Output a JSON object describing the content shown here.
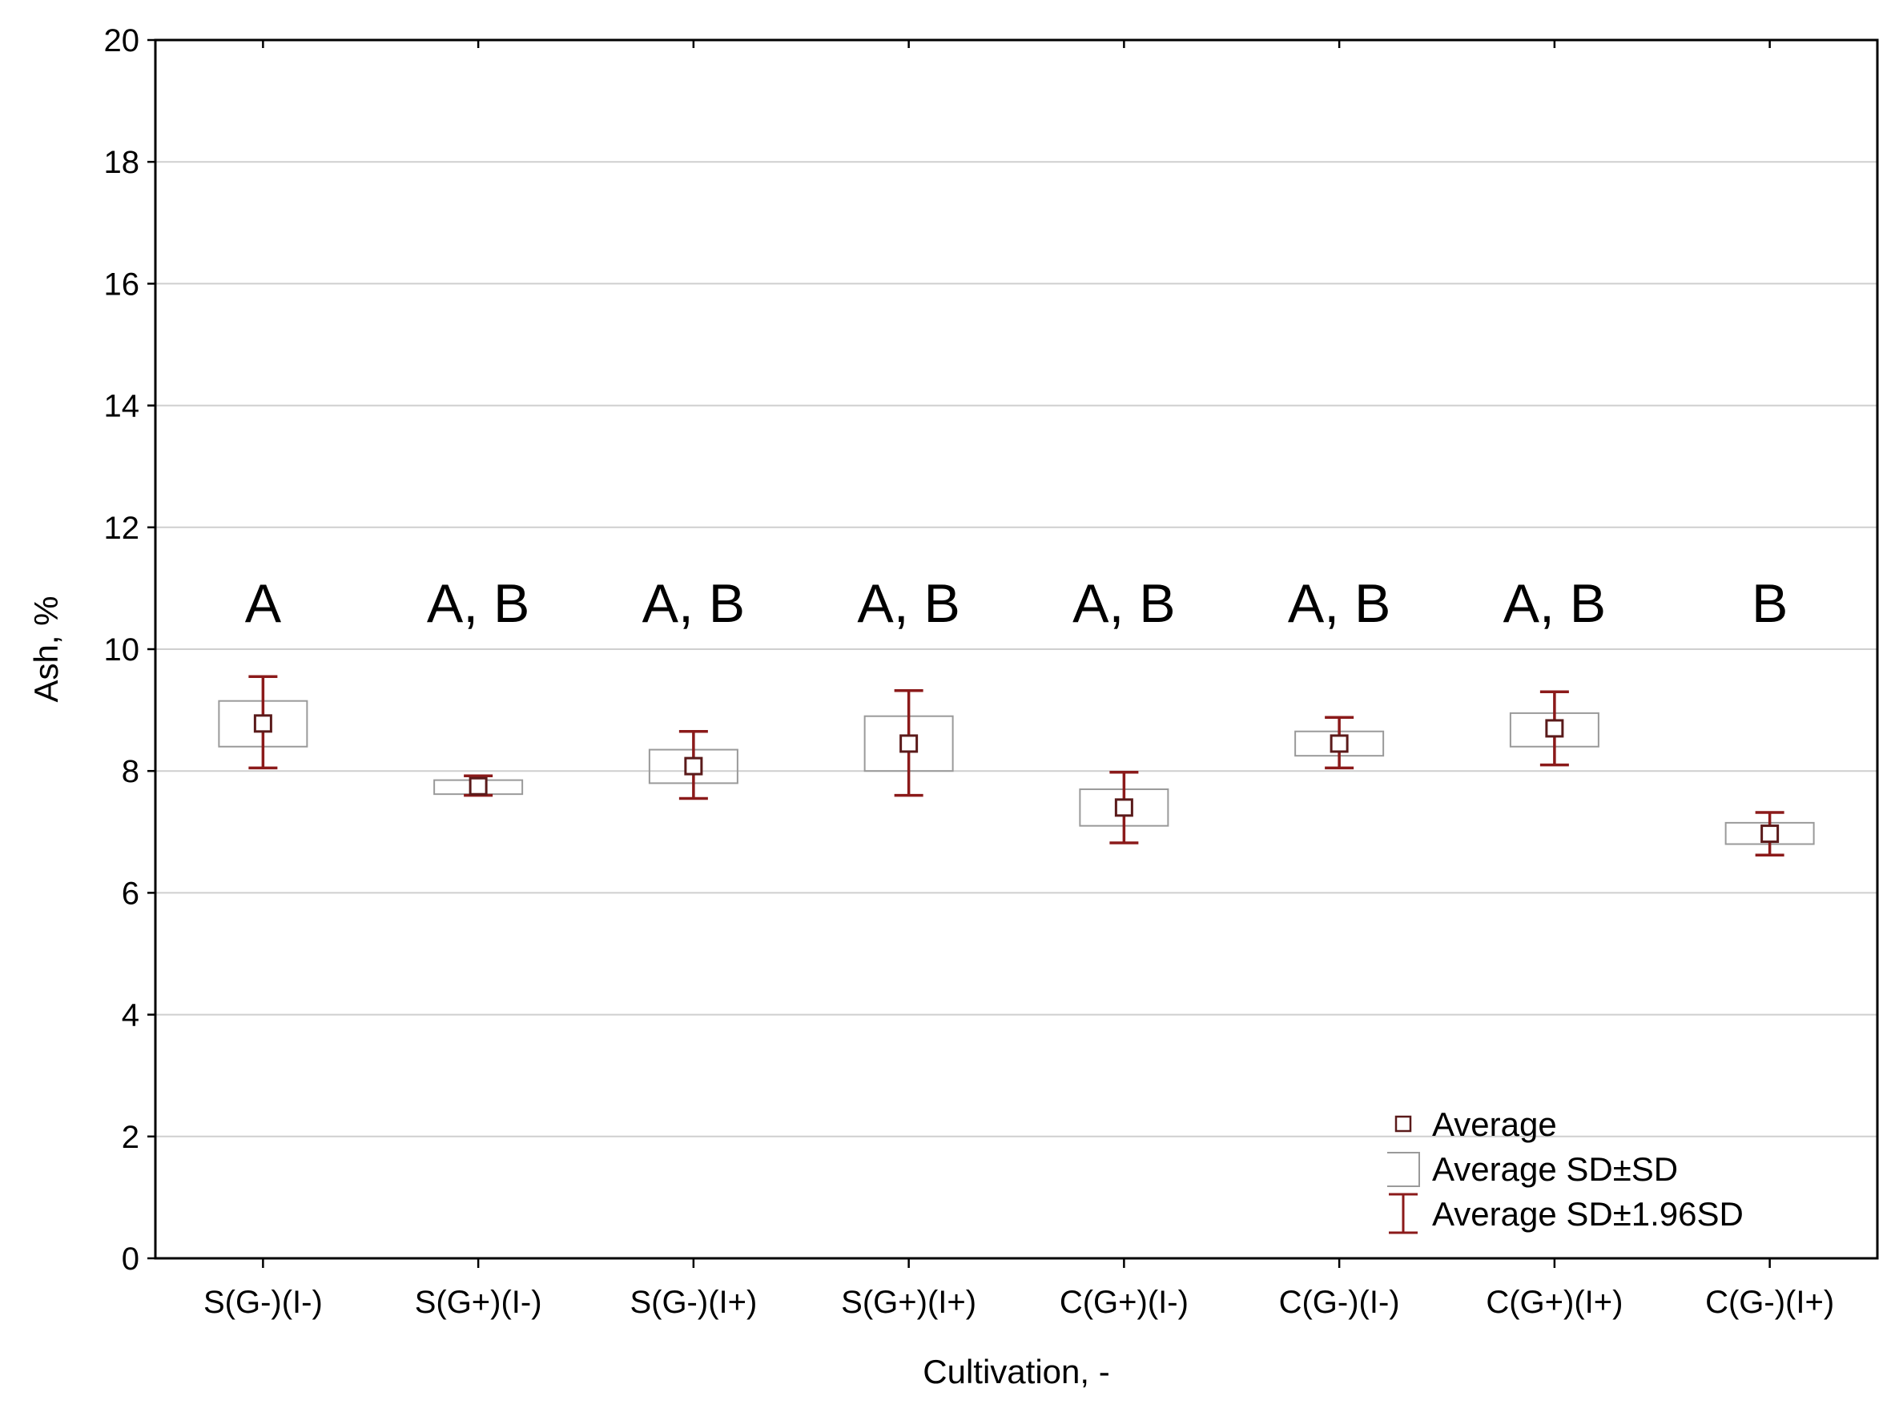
{
  "chart_data": {
    "type": "box",
    "xlabel": "Cultivation, -",
    "ylabel": "Ash, %",
    "ylim": [
      0,
      20
    ],
    "yticks": [
      0,
      2,
      4,
      6,
      8,
      10,
      12,
      14,
      16,
      18,
      20
    ],
    "grid": "horizontal",
    "legend_position": "bottom-right",
    "colors": {
      "mean_marker": "#5a1a1a",
      "whisker": "#8b1a1a",
      "sd_box": "#9a9a9a",
      "grid": "#cfcfcf",
      "frame": "#000000"
    },
    "categories": [
      "S(G-)(I-)",
      "S(G+)(I-)",
      "S(G-)(I+)",
      "S(G+)(I+)",
      "C(G+)(I-)",
      "C(G-)(I-)",
      "C(G+)(I+)",
      "C(G-)(I+)"
    ],
    "mean": [
      8.78,
      7.75,
      8.08,
      8.45,
      7.4,
      8.45,
      8.7,
      6.97
    ],
    "sd_low": [
      8.4,
      7.62,
      7.8,
      8.0,
      7.1,
      8.25,
      8.4,
      6.8
    ],
    "sd_high": [
      9.15,
      7.85,
      8.35,
      8.9,
      7.7,
      8.65,
      8.95,
      7.15
    ],
    "ci_low": [
      8.05,
      7.6,
      7.55,
      7.6,
      6.82,
      8.05,
      8.1,
      6.62
    ],
    "ci_high": [
      9.55,
      7.92,
      8.65,
      9.32,
      7.98,
      8.88,
      9.3,
      7.32
    ],
    "group_letters": [
      "A",
      "A, B",
      "A, B",
      "A, B",
      "A, B",
      "A, B",
      "A, B",
      "B"
    ],
    "legend": [
      {
        "key": "mean",
        "label": "Average"
      },
      {
        "key": "sd",
        "label": "Average SD±SD"
      },
      {
        "key": "ci",
        "label": "Average SD±1.96SD"
      }
    ]
  }
}
